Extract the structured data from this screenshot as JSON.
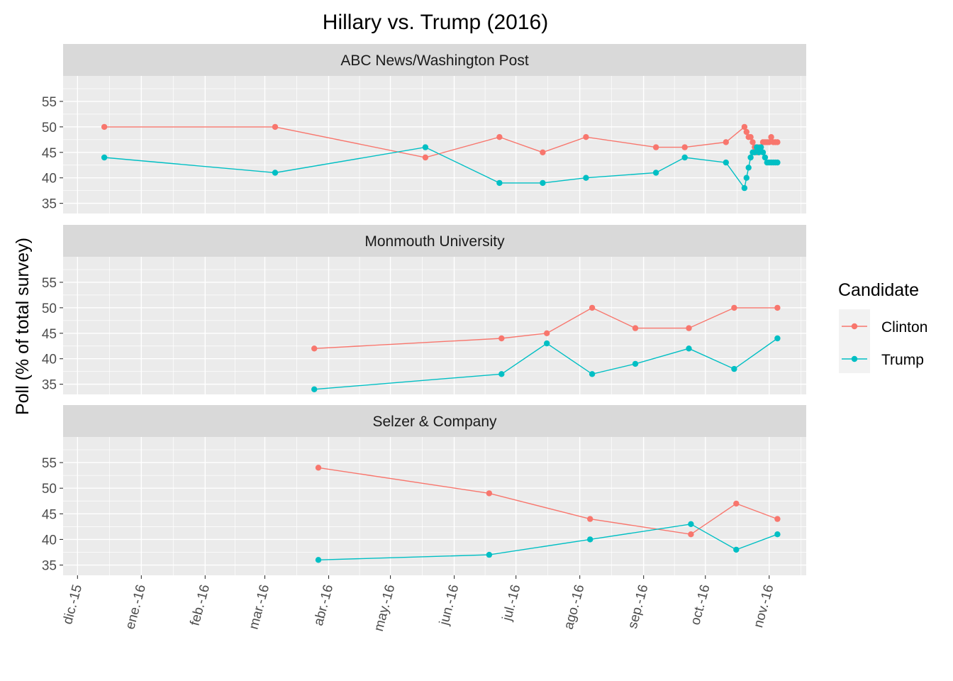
{
  "chart_data": {
    "type": "line",
    "title": "Hillary vs. Trump (2016)",
    "xlabel": "",
    "ylabel": "Poll (% of total survey)",
    "ylim": [
      33,
      60
    ],
    "yticks": [
      35,
      40,
      45,
      50,
      55
    ],
    "xlim": [
      "2015-11-24",
      "2016-11-19"
    ],
    "xticks": [
      {
        "date": "2015-12-01",
        "label": "dic.-15"
      },
      {
        "date": "2016-01-01",
        "label": "ene.-16"
      },
      {
        "date": "2016-02-01",
        "label": "feb.-16"
      },
      {
        "date": "2016-03-01",
        "label": "mar.-16"
      },
      {
        "date": "2016-04-01",
        "label": "abr.-16"
      },
      {
        "date": "2016-05-01",
        "label": "may.-16"
      },
      {
        "date": "2016-06-01",
        "label": "jun.-16"
      },
      {
        "date": "2016-07-01",
        "label": "jul.-16"
      },
      {
        "date": "2016-08-01",
        "label": "ago.-16"
      },
      {
        "date": "2016-09-01",
        "label": "sep.-16"
      },
      {
        "date": "2016-10-01",
        "label": "oct.-16"
      },
      {
        "date": "2016-11-01",
        "label": "nov.-16"
      }
    ],
    "grid": true,
    "legend": {
      "title": "Candidate",
      "position": "right"
    },
    "series_colors": {
      "Clinton": "#F8766D",
      "Trump": "#00BFC4"
    },
    "panels": [
      {
        "label": "ABC News/Washington Post",
        "series": [
          {
            "name": "Clinton",
            "points": [
              [
                "2015-12-14",
                50
              ],
              [
                "2016-03-06",
                50
              ],
              [
                "2016-05-18",
                44
              ],
              [
                "2016-06-23",
                48
              ],
              [
                "2016-07-14",
                45
              ],
              [
                "2016-08-04",
                48
              ],
              [
                "2016-09-07",
                46
              ],
              [
                "2016-09-21",
                46
              ],
              [
                "2016-10-11",
                47
              ],
              [
                "2016-10-20",
                50
              ],
              [
                "2016-10-21",
                49
              ],
              [
                "2016-10-22",
                48
              ],
              [
                "2016-10-23",
                48
              ],
              [
                "2016-10-24",
                47
              ],
              [
                "2016-10-25",
                46
              ],
              [
                "2016-10-26",
                45
              ],
              [
                "2016-10-27",
                46
              ],
              [
                "2016-10-28",
                46
              ],
              [
                "2016-10-29",
                47
              ],
              [
                "2016-10-30",
                47
              ],
              [
                "2016-10-31",
                47
              ],
              [
                "2016-11-01",
                47
              ],
              [
                "2016-11-02",
                48
              ],
              [
                "2016-11-03",
                47
              ],
              [
                "2016-11-04",
                47
              ],
              [
                "2016-11-05",
                47
              ]
            ]
          },
          {
            "name": "Trump",
            "points": [
              [
                "2015-12-14",
                44
              ],
              [
                "2016-03-06",
                41
              ],
              [
                "2016-05-18",
                46
              ],
              [
                "2016-06-23",
                39
              ],
              [
                "2016-07-14",
                39
              ],
              [
                "2016-08-04",
                40
              ],
              [
                "2016-09-07",
                41
              ],
              [
                "2016-09-21",
                44
              ],
              [
                "2016-10-11",
                43
              ],
              [
                "2016-10-20",
                38
              ],
              [
                "2016-10-21",
                40
              ],
              [
                "2016-10-22",
                42
              ],
              [
                "2016-10-23",
                44
              ],
              [
                "2016-10-24",
                45
              ],
              [
                "2016-10-25",
                45
              ],
              [
                "2016-10-26",
                46
              ],
              [
                "2016-10-27",
                45
              ],
              [
                "2016-10-28",
                46
              ],
              [
                "2016-10-29",
                45
              ],
              [
                "2016-10-30",
                44
              ],
              [
                "2016-10-31",
                43
              ],
              [
                "2016-11-01",
                43
              ],
              [
                "2016-11-02",
                43
              ],
              [
                "2016-11-03",
                43
              ],
              [
                "2016-11-04",
                43
              ],
              [
                "2016-11-05",
                43
              ]
            ]
          }
        ]
      },
      {
        "label": "Monmouth University",
        "series": [
          {
            "name": "Clinton",
            "points": [
              [
                "2016-03-25",
                42
              ],
              [
                "2016-06-24",
                44
              ],
              [
                "2016-07-16",
                45
              ],
              [
                "2016-08-07",
                50
              ],
              [
                "2016-08-28",
                46
              ],
              [
                "2016-09-23",
                46
              ],
              [
                "2016-10-15",
                50
              ],
              [
                "2016-11-05",
                50
              ]
            ]
          },
          {
            "name": "Trump",
            "points": [
              [
                "2016-03-25",
                34
              ],
              [
                "2016-06-24",
                37
              ],
              [
                "2016-07-16",
                43
              ],
              [
                "2016-08-07",
                37
              ],
              [
                "2016-08-28",
                39
              ],
              [
                "2016-09-23",
                42
              ],
              [
                "2016-10-15",
                38
              ],
              [
                "2016-11-05",
                44
              ]
            ]
          }
        ]
      },
      {
        "label": "Selzer & Company",
        "series": [
          {
            "name": "Clinton",
            "points": [
              [
                "2016-03-27",
                54
              ],
              [
                "2016-06-18",
                49
              ],
              [
                "2016-08-06",
                44
              ],
              [
                "2016-09-24",
                41
              ],
              [
                "2016-10-16",
                47
              ],
              [
                "2016-11-05",
                44
              ]
            ]
          },
          {
            "name": "Trump",
            "points": [
              [
                "2016-03-27",
                36
              ],
              [
                "2016-06-18",
                37
              ],
              [
                "2016-08-06",
                40
              ],
              [
                "2016-09-24",
                43
              ],
              [
                "2016-10-16",
                38
              ],
              [
                "2016-11-05",
                41
              ]
            ]
          }
        ]
      }
    ]
  }
}
